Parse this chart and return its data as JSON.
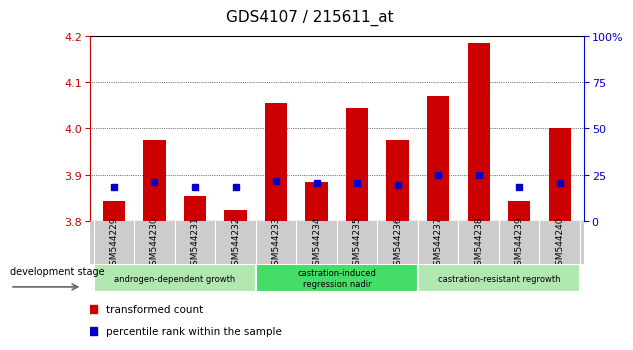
{
  "title": "GDS4107 / 215611_at",
  "samples": [
    "GSM544229",
    "GSM544230",
    "GSM544231",
    "GSM544232",
    "GSM544233",
    "GSM544234",
    "GSM544235",
    "GSM544236",
    "GSM544237",
    "GSM544238",
    "GSM544239",
    "GSM544240"
  ],
  "red_values": [
    3.845,
    3.975,
    3.855,
    3.825,
    4.055,
    3.885,
    4.045,
    3.975,
    4.07,
    4.185,
    3.845,
    4.0
  ],
  "blue_values": [
    3.875,
    3.885,
    3.875,
    3.875,
    3.888,
    3.882,
    3.882,
    3.878,
    3.9,
    3.9,
    3.875,
    3.882
  ],
  "ylim": [
    3.8,
    4.2
  ],
  "y_ticks": [
    3.8,
    3.9,
    4.0,
    4.1,
    4.2
  ],
  "right_ylim": [
    0,
    100
  ],
  "right_yticks": [
    0,
    25,
    50,
    75,
    100
  ],
  "right_yticklabels": [
    "0",
    "25",
    "50",
    "75",
    "100%"
  ],
  "red_color": "#cc0000",
  "blue_color": "#0000cc",
  "bar_base": 3.8,
  "groups": [
    {
      "label": "androgen-dependent growth",
      "start": 0,
      "end": 3,
      "color": "#b0e8b0"
    },
    {
      "label": "castration-induced\nregression nadir",
      "start": 4,
      "end": 7,
      "color": "#44dd66"
    },
    {
      "label": "castration-resistant regrowth",
      "start": 8,
      "end": 11,
      "color": "#b0e8b0"
    }
  ],
  "legend_transformed": "transformed count",
  "legend_percentile": "percentile rank within the sample",
  "left_tick_color": "#cc0000",
  "right_tick_color": "#0000cc",
  "bg_gray": "#cccccc"
}
